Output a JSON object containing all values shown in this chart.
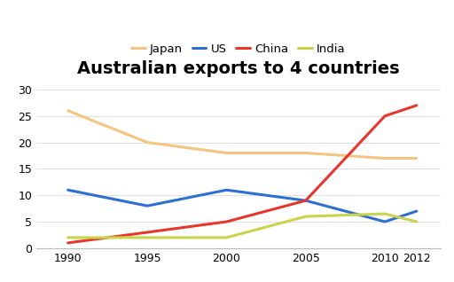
{
  "title": "Australian exports to 4 countries",
  "years": [
    1990,
    1995,
    2000,
    2005,
    2010,
    2012
  ],
  "series": {
    "Japan": {
      "values": [
        26,
        20,
        18,
        18,
        17,
        17
      ],
      "color": "#F5C580",
      "linewidth": 2.2
    },
    "US": {
      "values": [
        11,
        8,
        11,
        9,
        5,
        7
      ],
      "color": "#2E6FD4",
      "linewidth": 2.2
    },
    "China": {
      "values": [
        1,
        3,
        5,
        9,
        25,
        27
      ],
      "color": "#E8372A",
      "linewidth": 2.2
    },
    "India": {
      "values": [
        2,
        2,
        2,
        6,
        6.5,
        5
      ],
      "color": "#C8D44A",
      "linewidth": 2.2
    }
  },
  "legend_order": [
    "Japan",
    "US",
    "China",
    "India"
  ],
  "ylim": [
    0,
    32
  ],
  "yticks": [
    0,
    5,
    10,
    15,
    20,
    25,
    30
  ],
  "xticks": [
    1990,
    1995,
    2000,
    2005,
    2010,
    2012
  ],
  "background_color": "#ffffff",
  "grid_color": "#e0e0e0",
  "title_fontsize": 14,
  "legend_fontsize": 9.5,
  "tick_fontsize": 9
}
